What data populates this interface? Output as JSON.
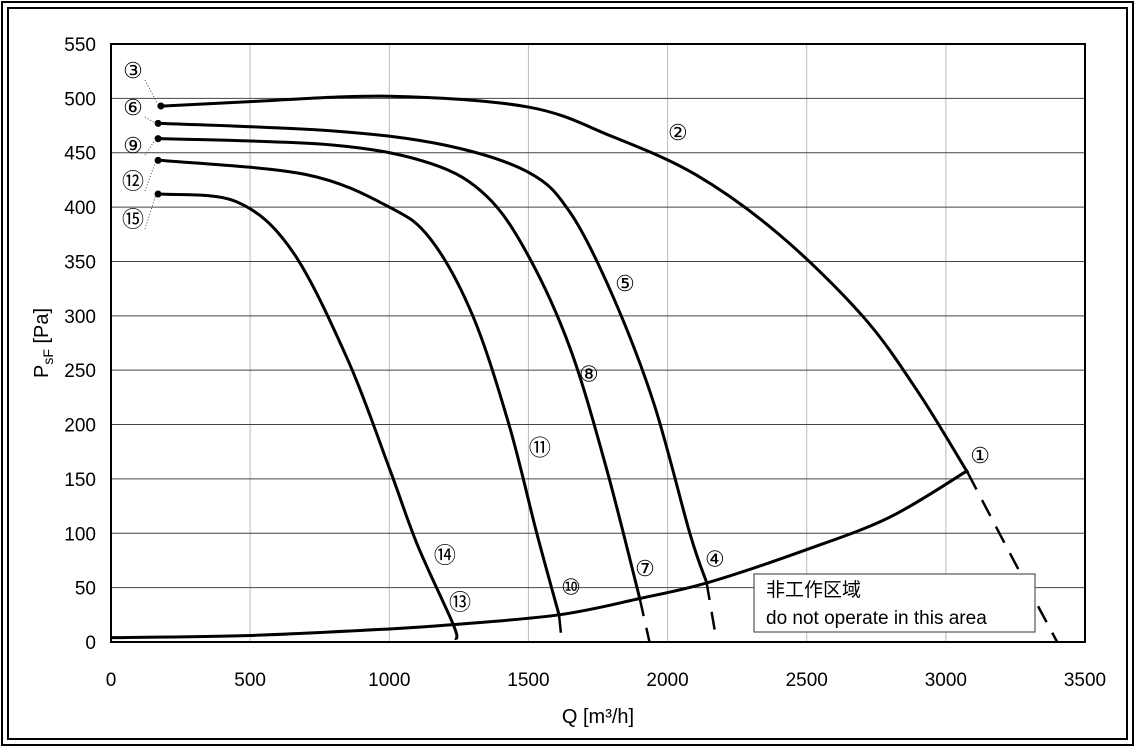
{
  "chart_data": {
    "type": "line",
    "xlabel": "Q [m³/h]",
    "ylabel": {
      "main": "P",
      "sub": "sF",
      "unit": " [Pa]"
    },
    "xlim": [
      0,
      3500
    ],
    "ylim": [
      0,
      550
    ],
    "xticks": [
      "0",
      "500",
      "1000",
      "1500",
      "2000",
      "2500",
      "3000",
      "3500"
    ],
    "yticks": [
      "0",
      "50",
      "100",
      "150",
      "200",
      "250",
      "300",
      "350",
      "400",
      "450",
      "500",
      "550"
    ],
    "grid": true,
    "series": [
      {
        "id": "curve-2",
        "style": "solid",
        "points": [
          [
            190,
            493
          ],
          [
            500,
            497
          ],
          [
            1000,
            502
          ],
          [
            1500,
            492
          ],
          [
            1800,
            465
          ],
          [
            2100,
            430
          ],
          [
            2400,
            375
          ],
          [
            2700,
            300
          ],
          [
            2900,
            230
          ],
          [
            3080,
            155
          ]
        ]
      },
      {
        "id": "curve-2-ext",
        "style": "dashed",
        "points": [
          [
            3080,
            155
          ],
          [
            3250,
            72
          ],
          [
            3400,
            0
          ]
        ]
      },
      {
        "id": "curve-5",
        "style": "solid",
        "points": [
          [
            180,
            477
          ],
          [
            800,
            470
          ],
          [
            1200,
            457
          ],
          [
            1500,
            432
          ],
          [
            1650,
            395
          ],
          [
            1800,
            320
          ],
          [
            1950,
            220
          ],
          [
            2080,
            100
          ],
          [
            2140,
            55
          ]
        ]
      },
      {
        "id": "curve-5-ext",
        "style": "dashed",
        "points": [
          [
            2140,
            55
          ],
          [
            2170,
            10
          ]
        ]
      },
      {
        "id": "curve-8",
        "style": "solid",
        "points": [
          [
            180,
            463
          ],
          [
            800,
            457
          ],
          [
            1150,
            440
          ],
          [
            1350,
            410
          ],
          [
            1500,
            355
          ],
          [
            1650,
            270
          ],
          [
            1780,
            160
          ],
          [
            1900,
            40
          ]
        ]
      },
      {
        "id": "curve-8-ext",
        "style": "dashed",
        "points": [
          [
            1900,
            40
          ],
          [
            1935,
            0
          ]
        ]
      },
      {
        "id": "curve-11",
        "style": "solid",
        "points": [
          [
            180,
            443
          ],
          [
            700,
            430
          ],
          [
            1000,
            400
          ],
          [
            1150,
            370
          ],
          [
            1300,
            300
          ],
          [
            1430,
            200
          ],
          [
            1530,
            100
          ],
          [
            1610,
            25
          ]
        ]
      },
      {
        "id": "curve-11-ext",
        "style": "dashed",
        "points": [
          [
            1610,
            25
          ],
          [
            1620,
            0
          ]
        ]
      },
      {
        "id": "curve-14",
        "style": "solid",
        "points": [
          [
            180,
            412
          ],
          [
            450,
            405
          ],
          [
            650,
            360
          ],
          [
            850,
            260
          ],
          [
            1000,
            160
          ],
          [
            1100,
            90
          ],
          [
            1230,
            16
          ],
          [
            1240,
            2
          ]
        ]
      },
      {
        "id": "system-curve",
        "style": "solid",
        "points": [
          [
            0,
            4
          ],
          [
            500,
            6
          ],
          [
            1000,
            12
          ],
          [
            1230,
            16
          ],
          [
            1610,
            25
          ],
          [
            1900,
            40
          ],
          [
            2150,
            55
          ],
          [
            2500,
            85
          ],
          [
            2800,
            115
          ],
          [
            3080,
            158
          ]
        ]
      }
    ],
    "start_dots": [
      [
        190,
        493
      ],
      [
        180,
        477
      ],
      [
        180,
        463
      ],
      [
        180,
        443
      ],
      [
        180,
        412
      ]
    ],
    "annotations": [
      {
        "text": "①",
        "x": 3123,
        "y": 172
      },
      {
        "text": "②",
        "x": 2037,
        "y": 469
      },
      {
        "text": "③",
        "x": 79,
        "y": 526,
        "leader_to": [
          190,
          493
        ]
      },
      {
        "text": "④",
        "x": 2170,
        "y": 77
      },
      {
        "text": "⑤",
        "x": 1847,
        "y": 330
      },
      {
        "text": "⑥",
        "x": 79,
        "y": 492,
        "leader_to": [
          180,
          477
        ]
      },
      {
        "text": "⑦",
        "x": 1919,
        "y": 68
      },
      {
        "text": "⑧",
        "x": 1717,
        "y": 247
      },
      {
        "text": "⑨",
        "x": 79,
        "y": 457,
        "leader_to": [
          180,
          463
        ]
      },
      {
        "text": "⑩",
        "x": 1653,
        "y": 51
      },
      {
        "text": "⑪",
        "x": 1541,
        "y": 179
      },
      {
        "text": "⑫",
        "x": 79,
        "y": 424,
        "leader_to": [
          180,
          443
        ]
      },
      {
        "text": "⑬",
        "x": 1254,
        "y": 37
      },
      {
        "text": "⑭",
        "x": 1200,
        "y": 80
      },
      {
        "text": "⑮",
        "x": 79,
        "y": 389,
        "leader_to": [
          180,
          412
        ]
      }
    ],
    "note": {
      "line1": "非工作区域",
      "line2": "do not operate in this area"
    }
  }
}
